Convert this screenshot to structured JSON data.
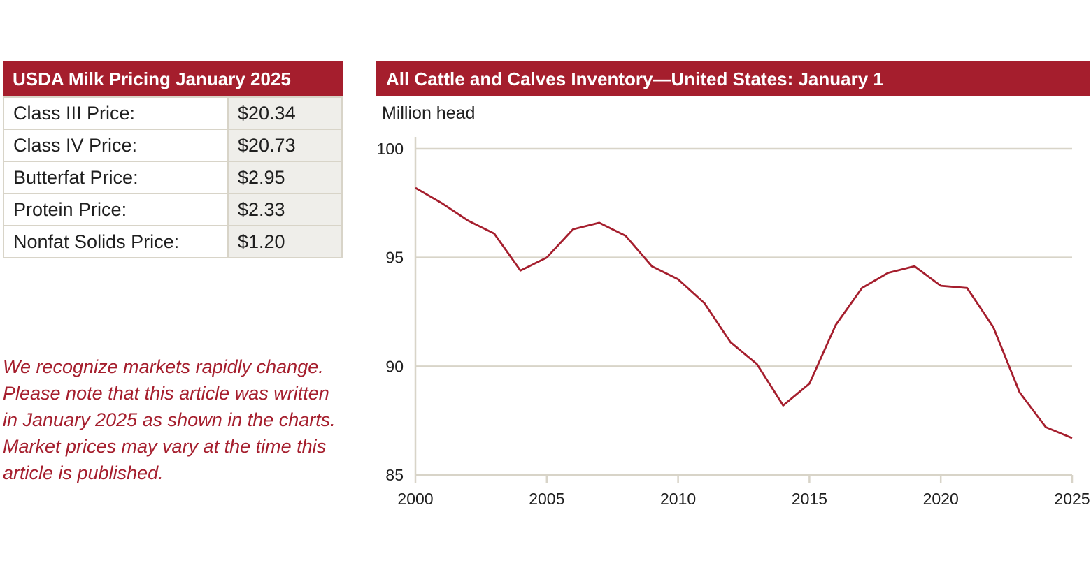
{
  "pricing": {
    "title": "USDA Milk Pricing January 2025",
    "rows": [
      {
        "label": "Class III Price:",
        "value": "$20.34"
      },
      {
        "label": "Class IV Price:",
        "value": "$20.73"
      },
      {
        "label": "Butterfat Price:",
        "value": "$2.95"
      },
      {
        "label": "Protein Price:",
        "value": "$2.33"
      },
      {
        "label": "Nonfat Solids Price:",
        "value": "$1.20"
      }
    ]
  },
  "note": {
    "lines": [
      "We recognize markets rapidly change.",
      "Please note that this article was written",
      "in January 2025 as shown in the charts.",
      "Market prices may vary at the time this",
      "article is published."
    ]
  },
  "colors": {
    "accent": "#a51e2d",
    "grid": "#d8d4c8",
    "cell_shade": "#efeeea"
  },
  "chart_data": {
    "type": "line",
    "title": "All Cattle and Calves Inventory—United States: January 1",
    "ylabel": "Million head",
    "xlabel": "",
    "x": [
      2000,
      2001,
      2002,
      2003,
      2004,
      2005,
      2006,
      2007,
      2008,
      2009,
      2010,
      2011,
      2012,
      2013,
      2014,
      2015,
      2016,
      2017,
      2018,
      2019,
      2020,
      2021,
      2022,
      2023,
      2024,
      2025
    ],
    "series": [
      {
        "values": [
          98.2,
          97.5,
          96.7,
          96.1,
          94.4,
          95.0,
          96.3,
          96.6,
          96.0,
          94.6,
          94.0,
          92.9,
          91.1,
          90.1,
          88.2,
          89.2,
          91.9,
          93.6,
          94.3,
          94.6,
          93.7,
          93.6,
          91.8,
          88.8,
          87.2,
          86.7
        ]
      }
    ],
    "xlim": [
      2000,
      2025
    ],
    "ylim": [
      85,
      100
    ],
    "xticks": [
      "2000",
      "2005",
      "2010",
      "2015",
      "2020",
      "2025"
    ],
    "yticks": [
      "85",
      "90",
      "95",
      "100"
    ],
    "grid": "horizontal",
    "line_color": "#a51e2d"
  }
}
